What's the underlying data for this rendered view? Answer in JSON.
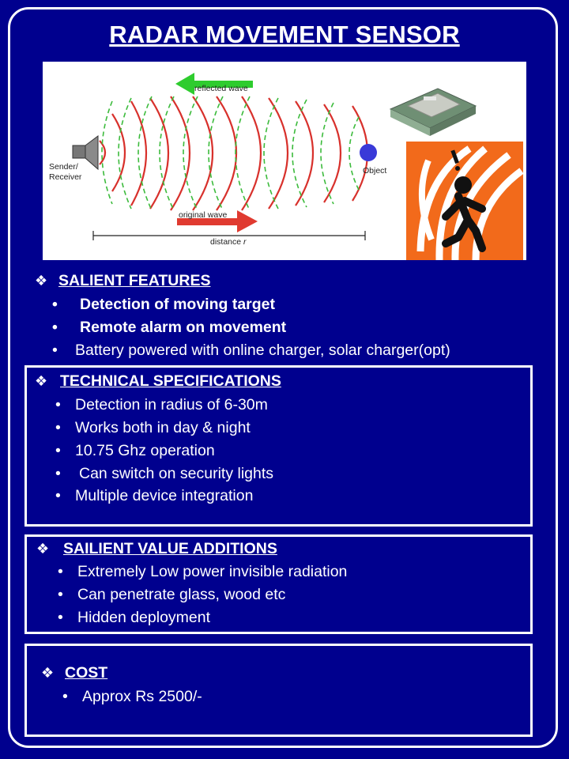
{
  "title": "RADAR MOVEMENT SENSOR",
  "diagram": {
    "reflected_wave": "reflected wave",
    "original_wave": "original wave",
    "sender_receiver": "Sender/ Receiver",
    "object": "Object",
    "distance_prefix": "distance ",
    "distance_var": "r"
  },
  "bullet_symbol": "•",
  "section_symbol": "❖",
  "salient_features": {
    "heading": "SALIENT FEATURES",
    "items": [
      "Detection of  moving target",
      "Remote alarm on movement",
      "Battery powered with online charger, solar charger(opt)"
    ]
  },
  "technical_specifications": {
    "heading": "TECHNICAL SPECIFICATIONS",
    "items": [
      "Detection in radius of 6-30m",
      "Works both in day & night",
      "10.75 Ghz operation",
      "Can switch on security lights",
      "Multiple device integration"
    ]
  },
  "value_additions": {
    "heading": "SAILIENT VALUE ADDITIONS",
    "items": [
      "Extremely Low power invisible radiation",
      "Can penetrate glass, wood etc",
      "Hidden deployment"
    ]
  },
  "cost": {
    "heading": "COST",
    "items": [
      "Approx Rs 2500/-"
    ]
  },
  "colors": {
    "background": "#00008e",
    "wave_solid": "#d8312c",
    "wave_dashed": "#3cbb3c",
    "reflected_arrow": "#2ecc2e",
    "original_arrow": "#e03a30",
    "object": "#3a3ad8",
    "warning_bg": "#f26a1b"
  }
}
